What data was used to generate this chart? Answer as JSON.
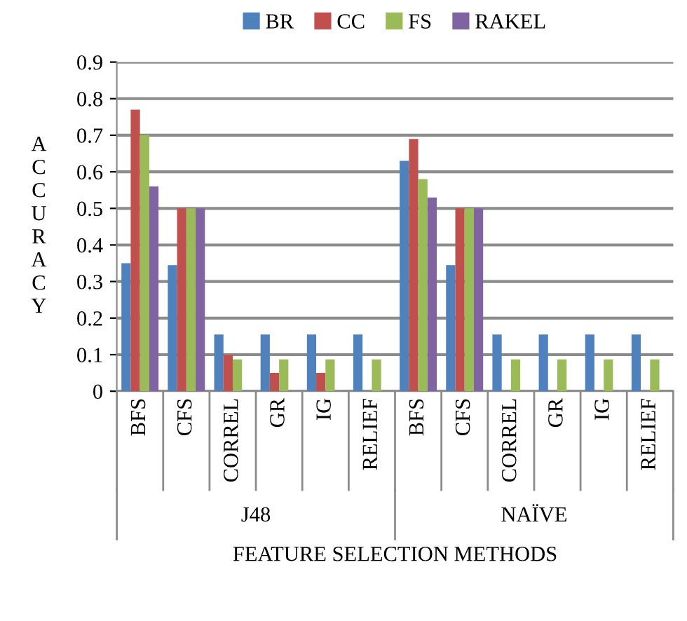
{
  "chart_data": {
    "type": "bar",
    "xlabel": "FEATURE SELECTION METHODS",
    "ylabel": "ACCURACY",
    "categories": [
      "BFS",
      "CFS",
      "CORREL",
      "GR",
      "IG",
      "RELIEF",
      "BFS",
      "CFS",
      "CORREL",
      "GR",
      "IG",
      "RELIEF"
    ],
    "annotations": [
      "J48",
      "NAÏVE"
    ],
    "series": [
      {
        "name": "BR",
        "color": "#4f81bd",
        "values": [
          0.35,
          0.345,
          0.155,
          0.155,
          0.155,
          0.155,
          0.63,
          0.345,
          0.155,
          0.155,
          0.155,
          0.155
        ]
      },
      {
        "name": "CC",
        "color": "#c0504d",
        "values": [
          0.77,
          0.5,
          0.1,
          0.05,
          0.05,
          null,
          0.69,
          0.5,
          null,
          null,
          null,
          null
        ]
      },
      {
        "name": "FS",
        "color": "#9bbb59",
        "values": [
          0.7,
          0.5,
          0.087,
          0.087,
          0.087,
          0.087,
          0.58,
          0.5,
          0.087,
          0.087,
          0.087,
          0.087
        ]
      },
      {
        "name": "RAKEL",
        "color": "#8064a2",
        "values": [
          0.56,
          0.5,
          null,
          null,
          null,
          null,
          0.53,
          0.5,
          null,
          null,
          null,
          null
        ]
      }
    ],
    "ylim": [
      0,
      0.9
    ],
    "yticks": [
      0,
      0.1,
      0.2,
      0.3,
      0.4,
      0.5,
      0.6,
      0.7,
      0.8,
      0.9
    ],
    "grid": "y",
    "legend": "top"
  }
}
